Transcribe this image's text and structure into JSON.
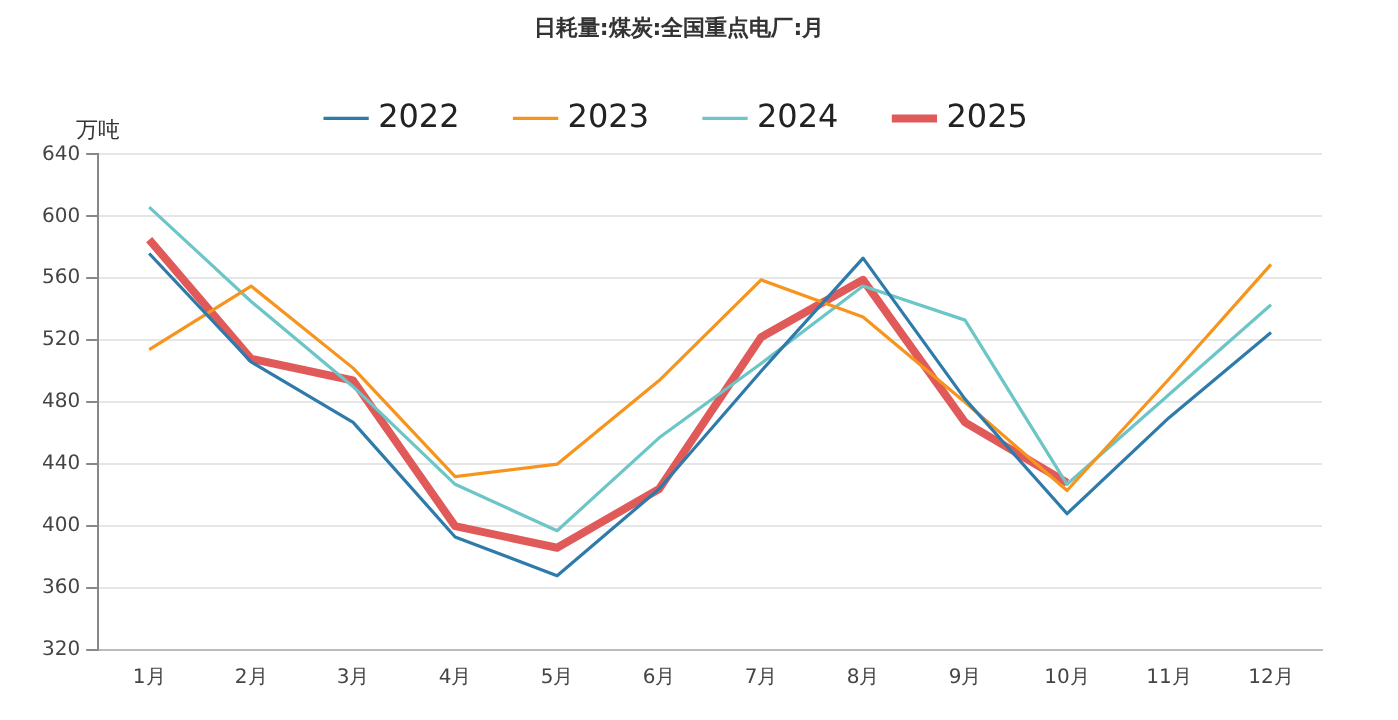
{
  "chart_data": {
    "type": "line",
    "title": "日耗量:煤炭:全国重点电厂:月",
    "ylabel": "万吨",
    "categories": [
      "1月",
      "2月",
      "3月",
      "4月",
      "5月",
      "6月",
      "7月",
      "8月",
      "9月",
      "10月",
      "11月",
      "12月"
    ],
    "series": [
      {
        "name": "2022",
        "color": "#2e7bab",
        "values": [
          576,
          506,
          467,
          393,
          368,
          424,
          500,
          573,
          482,
          408,
          470,
          525
        ]
      },
      {
        "name": "2023",
        "color": "#f7941d",
        "values": [
          514,
          555,
          502,
          432,
          440,
          494,
          559,
          535,
          480,
          423,
          495,
          569
        ]
      },
      {
        "name": "2024",
        "color": "#6cc5c6",
        "values": [
          606,
          545,
          490,
          427,
          397,
          457,
          505,
          555,
          533,
          427,
          485,
          543
        ]
      },
      {
        "name": "2025",
        "color": "#e05a5a",
        "values": [
          585,
          508,
          494,
          400,
          386,
          424,
          522,
          559,
          467,
          428,
          null,
          null
        ]
      }
    ],
    "ylim": [
      320,
      640
    ],
    "yticks": [
      320,
      360,
      400,
      440,
      480,
      520,
      560,
      600,
      640
    ],
    "grid": "y",
    "legend": "top",
    "marker": "none",
    "line_style": "solid"
  }
}
